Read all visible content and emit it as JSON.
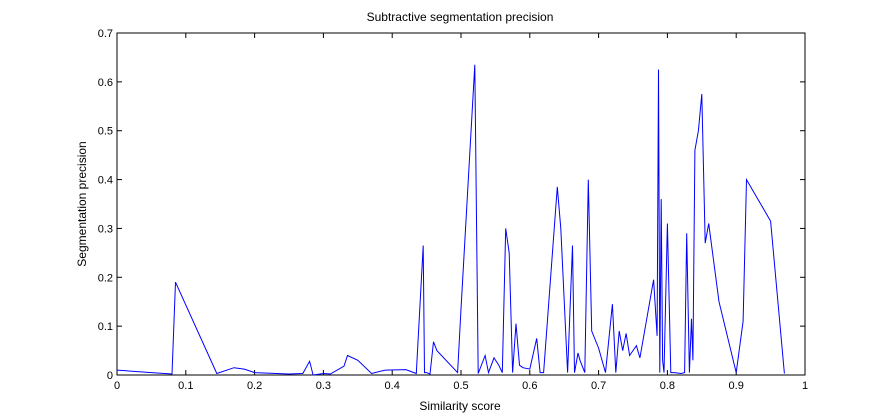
{
  "chart_data": {
    "type": "line",
    "title": "Subtractive segmentation precision",
    "xlabel": "Similarity score",
    "ylabel": "Segmentation precision",
    "xlim": [
      0,
      1
    ],
    "ylim": [
      0,
      0.7
    ],
    "xticks": [
      "0",
      "0.1",
      "0.2",
      "0.3",
      "0.4",
      "0.5",
      "0.6",
      "0.7",
      "0.8",
      "0.9",
      "1"
    ],
    "yticks": [
      "0",
      "0.1",
      "0.2",
      "0.3",
      "0.4",
      "0.5",
      "0.6",
      "0.7"
    ],
    "grid": false,
    "series": [
      {
        "color": "#0000ff",
        "x": [
          0,
          0.05,
          0.08,
          0.085,
          0.145,
          0.17,
          0.185,
          0.2,
          0.25,
          0.27,
          0.28,
          0.285,
          0.3,
          0.31,
          0.33,
          0.335,
          0.35,
          0.37,
          0.39,
          0.42,
          0.435,
          0.445,
          0.447,
          0.45,
          0.455,
          0.46,
          0.465,
          0.495,
          0.5,
          0.52,
          0.525,
          0.535,
          0.54,
          0.548,
          0.555,
          0.56,
          0.565,
          0.57,
          0.575,
          0.58,
          0.585,
          0.59,
          0.6,
          0.61,
          0.615,
          0.62,
          0.64,
          0.645,
          0.655,
          0.662,
          0.665,
          0.67,
          0.673,
          0.68,
          0.685,
          0.69,
          0.7,
          0.71,
          0.72,
          0.725,
          0.73,
          0.735,
          0.74,
          0.745,
          0.755,
          0.76,
          0.78,
          0.785,
          0.787,
          0.789,
          0.791,
          0.793,
          0.795,
          0.8,
          0.805,
          0.81,
          0.82,
          0.825,
          0.828,
          0.832,
          0.835,
          0.837,
          0.84,
          0.845,
          0.85,
          0.855,
          0.86,
          0.875,
          0.9,
          0.91,
          0.915,
          0.95,
          0.97
        ],
        "y": [
          0.01,
          0.005,
          0.002,
          0.19,
          0.003,
          0.015,
          0.012,
          0.005,
          0.002,
          0.003,
          0.028,
          0,
          0.003,
          0.002,
          0.018,
          0.04,
          0.03,
          0.003,
          0.01,
          0.011,
          0.003,
          0.265,
          0.005,
          0.005,
          0.002,
          0.068,
          0.05,
          0.005,
          0.135,
          0.635,
          0.003,
          0.04,
          0.005,
          0.035,
          0.02,
          0.005,
          0.3,
          0.25,
          0.005,
          0.105,
          0.02,
          0.015,
          0.012,
          0.075,
          0.005,
          0.005,
          0.385,
          0.3,
          0.005,
          0.265,
          0.005,
          0.045,
          0.03,
          0.005,
          0.4,
          0.09,
          0.055,
          0.005,
          0.145,
          0.005,
          0.09,
          0.05,
          0.085,
          0.04,
          0.06,
          0.035,
          0.195,
          0.08,
          0.625,
          0.005,
          0.36,
          0.03,
          0.005,
          0.31,
          0.005,
          0.005,
          0.003,
          0.005,
          0.29,
          0.005,
          0.115,
          0.03,
          0.46,
          0.5,
          0.575,
          0.27,
          0.31,
          0.15,
          0.005,
          0.11,
          0.4,
          0.315,
          0.003
        ]
      }
    ]
  }
}
